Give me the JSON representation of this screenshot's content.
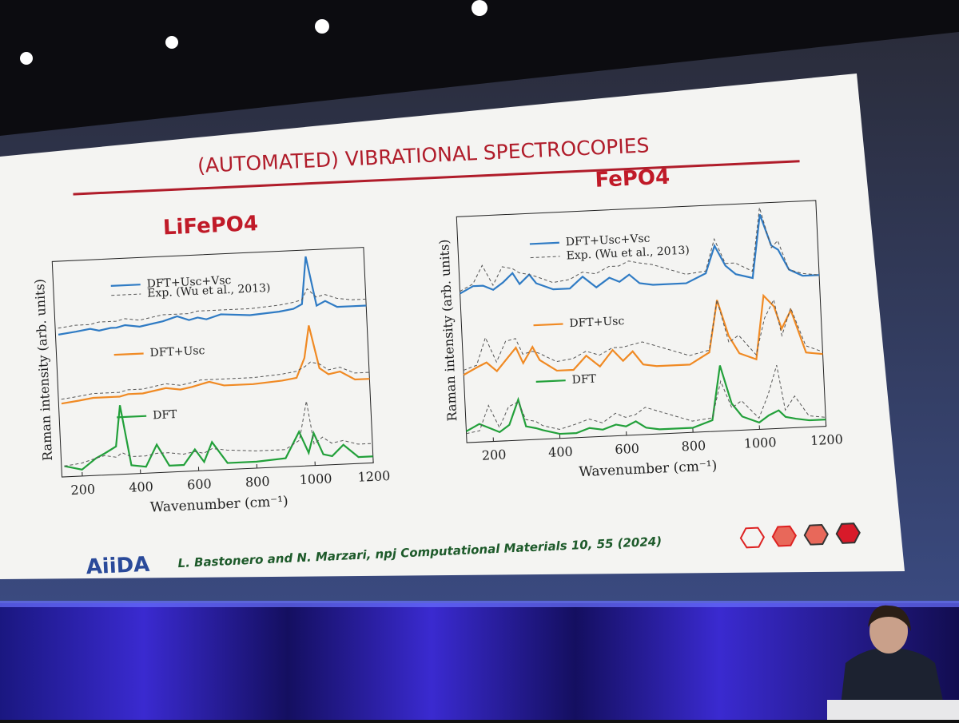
{
  "slide": {
    "title": "(AUTOMATED) VIBRATIONAL SPECTROCOPIES",
    "logo": "AiiDA",
    "citation": "L. Bastonero and N. Marzari, npj Computational Materials 10, 55 (2024)"
  },
  "chart_data": [
    {
      "type": "line",
      "title": "LiFePO4",
      "x_label": "Wavenumber (cm⁻¹)",
      "y_label": "Raman intensity (arb. units)",
      "xlim": [
        130,
        1200
      ],
      "xticks": [
        200,
        400,
        600,
        800,
        1000,
        1200
      ],
      "ylim": [
        0,
        10
      ],
      "x": [
        140,
        200,
        250,
        280,
        320,
        340,
        370,
        420,
        460,
        500,
        550,
        590,
        620,
        650,
        700,
        800,
        900,
        950,
        980,
        1000,
        1030,
        1060,
        1100,
        1150,
        1200
      ],
      "series": [
        {
          "name": "DFT+Usc+Vsc",
          "color": "#2f7bc4",
          "style": "solid",
          "values": [
            6.6,
            6.7,
            6.8,
            6.7,
            6.8,
            6.8,
            6.9,
            6.8,
            6.9,
            7.0,
            7.2,
            7.0,
            7.1,
            7.0,
            7.2,
            7.1,
            7.2,
            7.3,
            7.5,
            9.7,
            7.4,
            7.6,
            7.3,
            7.3,
            7.3
          ]
        },
        {
          "name": "Exp. (Wu et al., 2013)",
          "color": "#555555",
          "style": "dashed",
          "values": [
            6.9,
            7.0,
            7.0,
            7.1,
            7.1,
            7.1,
            7.2,
            7.1,
            7.2,
            7.3,
            7.3,
            7.3,
            7.4,
            7.4,
            7.4,
            7.4,
            7.5,
            7.6,
            7.7,
            8.2,
            7.8,
            7.9,
            7.7,
            7.6,
            7.6
          ]
        },
        {
          "name": "DFT+Usc",
          "color": "#f08a24",
          "style": "solid",
          "values": [
            3.4,
            3.5,
            3.6,
            3.6,
            3.6,
            3.6,
            3.7,
            3.7,
            3.8,
            3.9,
            3.8,
            3.9,
            4.0,
            4.1,
            3.9,
            3.9,
            4.0,
            4.1,
            5.0,
            6.5,
            4.5,
            4.2,
            4.3,
            3.9,
            3.9
          ]
        },
        {
          "color": "#555555",
          "style": "dashed",
          "values": [
            3.6,
            3.7,
            3.8,
            3.8,
            3.8,
            3.8,
            3.9,
            3.9,
            4.0,
            4.1,
            4.0,
            4.1,
            4.2,
            4.2,
            4.2,
            4.2,
            4.3,
            4.4,
            4.6,
            4.8,
            4.7,
            4.4,
            4.5,
            4.2,
            4.2
          ]
        },
        {
          "name": "DFT",
          "color": "#22a03a",
          "style": "solid",
          "values": [
            0.5,
            0.3,
            0.8,
            1.0,
            1.3,
            3.2,
            0.4,
            0.3,
            1.3,
            0.3,
            0.3,
            1.0,
            0.4,
            1.3,
            0.3,
            0.3,
            0.4,
            1.6,
            0.6,
            1.5,
            0.5,
            0.4,
            0.9,
            0.3,
            0.3
          ]
        },
        {
          "color": "#555555",
          "style": "dashed",
          "values": [
            0.5,
            0.6,
            0.8,
            0.9,
            0.8,
            1.0,
            0.8,
            0.8,
            0.9,
            0.9,
            0.8,
            0.9,
            0.8,
            1.0,
            0.9,
            0.8,
            0.8,
            1.2,
            3.0,
            1.0,
            1.3,
            1.0,
            1.1,
            0.9,
            0.9
          ]
        }
      ]
    },
    {
      "type": "line",
      "title": "FePO4",
      "x_label": "Wavenumber (cm⁻¹)",
      "y_label": "Raman intensity (arb. units)",
      "xlim": [
        120,
        1200
      ],
      "xticks": [
        200,
        400,
        600,
        800,
        1000,
        1200
      ],
      "ylim": [
        0,
        10
      ],
      "x": [
        120,
        160,
        190,
        220,
        250,
        280,
        300,
        330,
        350,
        400,
        450,
        490,
        530,
        570,
        600,
        630,
        660,
        700,
        800,
        860,
        890,
        920,
        950,
        1000,
        1030,
        1060,
        1080,
        1110,
        1150,
        1200
      ],
      "series": [
        {
          "name": "DFT+Usc+Vsc",
          "color": "#2f7bc4",
          "style": "solid",
          "values": [
            6.6,
            6.9,
            6.9,
            6.7,
            7.0,
            7.4,
            6.9,
            7.3,
            6.9,
            6.6,
            6.6,
            7.1,
            6.6,
            7.0,
            6.8,
            7.1,
            6.7,
            6.6,
            6.6,
            7.0,
            8.2,
            7.3,
            6.9,
            6.7,
            9.5,
            8.1,
            7.9,
            7.0,
            6.7,
            6.7
          ]
        },
        {
          "name": "Exp. (Wu et al., 2013)",
          "color": "#555555",
          "style": "dashed",
          "values": [
            6.7,
            7.0,
            7.8,
            6.9,
            7.7,
            7.6,
            7.4,
            7.3,
            7.2,
            6.9,
            7.0,
            7.3,
            7.2,
            7.5,
            7.5,
            7.7,
            7.6,
            7.5,
            7.0,
            7.1,
            8.5,
            7.4,
            7.4,
            7.0,
            9.8,
            8.0,
            8.3,
            7.0,
            6.8,
            6.7
          ]
        },
        {
          "name": "DFT+Usc",
          "color": "#f08a24",
          "style": "solid",
          "values": [
            3.0,
            3.3,
            3.5,
            3.1,
            3.6,
            4.1,
            3.4,
            4.1,
            3.5,
            3.0,
            3.0,
            3.6,
            3.1,
            3.8,
            3.3,
            3.7,
            3.1,
            3.0,
            3.0,
            3.5,
            5.8,
            4.2,
            3.4,
            3.1,
            5.9,
            5.4,
            4.4,
            5.2,
            3.3,
            3.2
          ]
        },
        {
          "color": "#555555",
          "style": "dashed",
          "values": [
            3.2,
            3.4,
            4.6,
            3.5,
            4.4,
            4.5,
            3.8,
            3.9,
            3.8,
            3.4,
            3.5,
            3.8,
            3.6,
            3.9,
            3.9,
            4.0,
            4.1,
            3.9,
            3.4,
            3.6,
            5.8,
            3.9,
            4.2,
            3.3,
            4.9,
            5.7,
            4.1,
            5.3,
            3.6,
            3.3
          ]
        },
        {
          "name": "DFT",
          "color": "#22a03a",
          "style": "solid",
          "values": [
            0.5,
            0.8,
            0.6,
            0.4,
            0.7,
            1.8,
            0.6,
            0.5,
            0.4,
            0.2,
            0.2,
            0.4,
            0.3,
            0.5,
            0.4,
            0.6,
            0.3,
            0.2,
            0.2,
            0.5,
            2.9,
            1.2,
            0.6,
            0.3,
            0.6,
            0.8,
            0.5,
            0.4,
            0.3,
            0.3
          ]
        },
        {
          "color": "#555555",
          "style": "dashed",
          "values": [
            0.4,
            0.5,
            1.6,
            0.6,
            1.5,
            1.7,
            0.9,
            0.8,
            0.6,
            0.4,
            0.6,
            0.8,
            0.6,
            1.0,
            0.8,
            0.9,
            1.2,
            1.0,
            0.5,
            0.6,
            2.2,
            1.0,
            1.3,
            0.5,
            1.5,
            2.8,
            0.8,
            1.4,
            0.5,
            0.4
          ]
        }
      ]
    }
  ]
}
